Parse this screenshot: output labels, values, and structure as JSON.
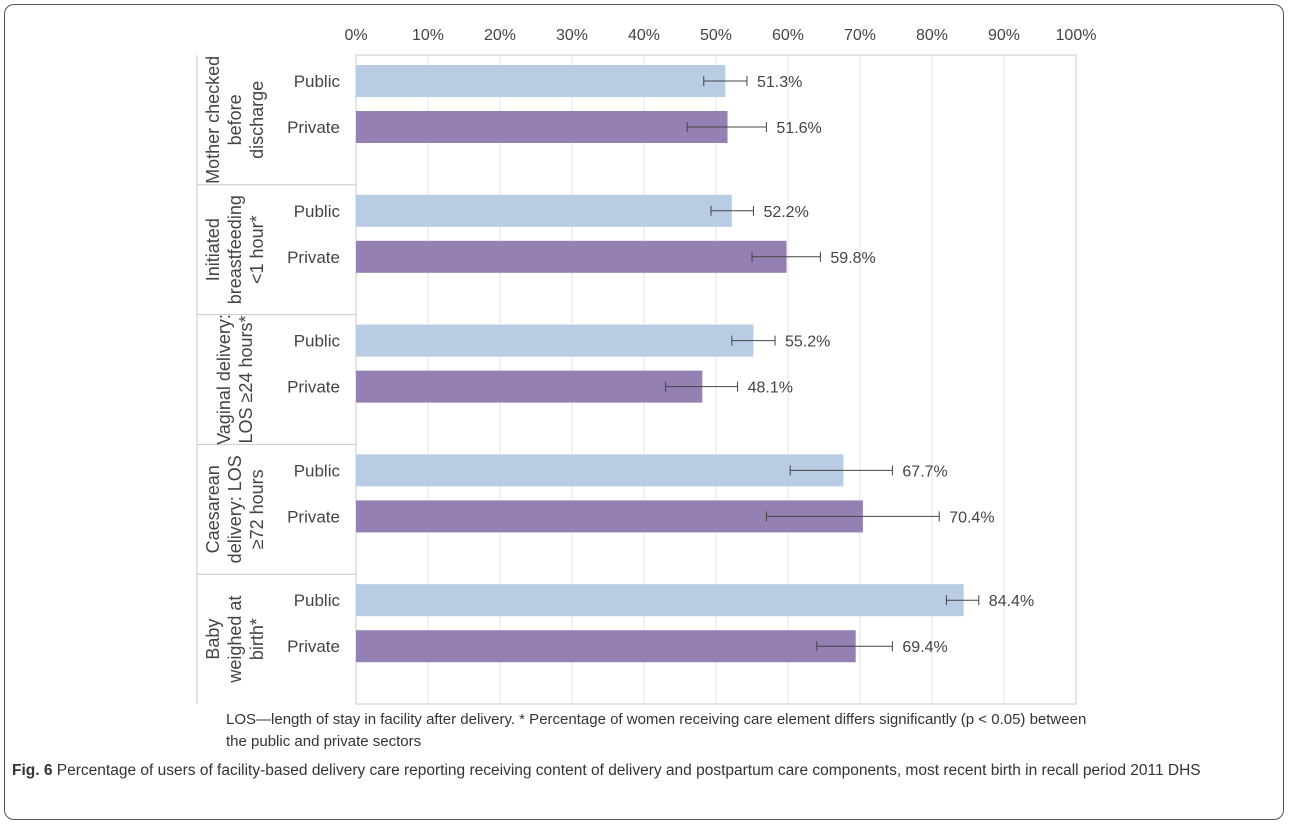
{
  "chart_data": {
    "type": "bar",
    "orientation": "horizontal",
    "xaxis": {
      "min": 0,
      "max": 100,
      "step": 10,
      "tick_suffix": "%",
      "position": "top"
    },
    "grid": true,
    "value_suffix": "%",
    "sector_labels": [
      "Public",
      "Private"
    ],
    "colors": {
      "Public": "#b8cce4",
      "Private": "#9580b4"
    },
    "groups": [
      {
        "label_lines": [
          "Mother checked",
          "before",
          "discharge"
        ],
        "bars": [
          {
            "sector": "Public",
            "value": 51.3,
            "ci": [
              48.3,
              54.3
            ],
            "label": "51.3%"
          },
          {
            "sector": "Private",
            "value": 51.6,
            "ci": [
              46.0,
              57.0
            ],
            "label": "51.6%"
          }
        ]
      },
      {
        "label_lines": [
          "Initiated",
          "breastfeeding",
          "<1 hour*"
        ],
        "bars": [
          {
            "sector": "Public",
            "value": 52.2,
            "ci": [
              49.3,
              55.2
            ],
            "label": "52.2%"
          },
          {
            "sector": "Private",
            "value": 59.8,
            "ci": [
              55.0,
              64.5
            ],
            "label": "59.8%"
          }
        ]
      },
      {
        "label_lines": [
          "Vaginal delivery:",
          "LOS ≥24 hours*"
        ],
        "bars": [
          {
            "sector": "Public",
            "value": 55.2,
            "ci": [
              52.2,
              58.2
            ],
            "label": "55.2%"
          },
          {
            "sector": "Private",
            "value": 48.1,
            "ci": [
              43.0,
              53.0
            ],
            "label": "48.1%"
          }
        ]
      },
      {
        "label_lines": [
          "Caesarean",
          "delivery: LOS",
          "≥72 hours"
        ],
        "bars": [
          {
            "sector": "Public",
            "value": 67.7,
            "ci": [
              60.3,
              74.5
            ],
            "label": "67.7%"
          },
          {
            "sector": "Private",
            "value": 70.4,
            "ci": [
              57.0,
              81.0
            ],
            "label": "70.4%"
          }
        ]
      },
      {
        "label_lines": [
          "Baby",
          "weighed at",
          "birth*"
        ],
        "bars": [
          {
            "sector": "Public",
            "value": 84.4,
            "ci": [
              82.0,
              86.5
            ],
            "label": "84.4%"
          },
          {
            "sector": "Private",
            "value": 69.4,
            "ci": [
              64.0,
              74.5
            ],
            "label": "69.4%"
          }
        ]
      }
    ]
  },
  "note": "LOS—length of stay in facility after delivery. * Percentage of women receiving care element differs significantly (p < 0.05) between the public and private sectors",
  "caption": {
    "label": "Fig. 6",
    "text": " Percentage of users of facility-based delivery care reporting receiving content of delivery and postpartum care components, most recent birth in recall period 2011 DHS"
  }
}
